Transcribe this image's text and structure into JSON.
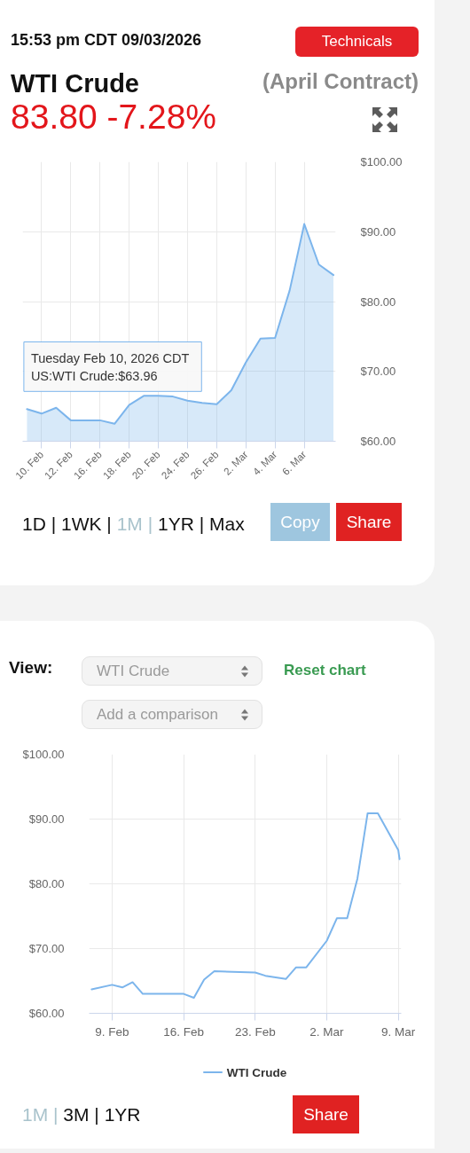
{
  "chart_data": [
    {
      "type": "area",
      "title": "WTI Crude",
      "subtitle": "(April Contract)",
      "annotations": [
        "15:53 pm CDT 09/03/2026",
        "83.80 -7.28%",
        "Technicals",
        "1D | 1WK | 1M | 1YR | Max",
        "Copy",
        "Share",
        {
          "text": "Tuesday Feb 10, 2026 CDT\nUS:WTI Crude:$63.96",
          "x": "10. Feb",
          "y": 63.96
        }
      ],
      "categories": [
        null,
        "10. Feb",
        null,
        "12. Feb",
        null,
        "16. Feb",
        null,
        "18. Feb",
        null,
        "20. Feb",
        null,
        "24. Feb",
        null,
        "26. Feb",
        null,
        "2. Mar",
        null,
        "4. Mar",
        null,
        "6. Mar",
        null,
        null
      ],
      "values": [
        64.6,
        63.96,
        64.8,
        63.0,
        63.0,
        63.0,
        62.5,
        65.2,
        66.5,
        66.5,
        66.4,
        65.8,
        65.5,
        65.3,
        67.3,
        71.3,
        74.7,
        74.8,
        81.6,
        91.1,
        85.3,
        83.8
      ],
      "color": "#7cb5ec",
      "ylim": [
        60,
        100
      ],
      "yticks": [
        {
          "value": 60,
          "label": "$60.00"
        },
        {
          "value": 70,
          "label": "$70.00"
        },
        {
          "value": 80,
          "label": "$80.00"
        },
        {
          "value": 90,
          "label": "$90.00"
        },
        {
          "value": 100,
          "label": "$100.00"
        }
      ],
      "grid": true
    },
    {
      "type": "line",
      "annotations": [
        "View:",
        "WTI Crude",
        "Add a comparison",
        "Reset chart",
        "1M | 3M | 1YR",
        "Share"
      ],
      "x": [
        "2026-02-07",
        "2026-02-09",
        "2026-02-10",
        "2026-02-11",
        "2026-02-12",
        "2026-02-16",
        "2026-02-17",
        "2026-02-18",
        "2026-02-19",
        "2026-02-23",
        "2026-02-24",
        "2026-02-26",
        "2026-02-27",
        "2026-02-28",
        "2026-03-02",
        "2026-03-03",
        "2026-03-04",
        "2026-03-05",
        "2026-03-06",
        "2026-03-07",
        "2026-03-09",
        "2026-03-09T03:00"
      ],
      "series": [
        {
          "name": "WTI Crude",
          "color": "#7cb5ec",
          "values": [
            63.7,
            64.4,
            64.0,
            64.8,
            63.0,
            63.0,
            62.4,
            65.2,
            66.5,
            66.3,
            65.8,
            65.3,
            67.1,
            67.1,
            71.2,
            74.7,
            74.7,
            80.8,
            90.9,
            90.9,
            85.2,
            83.8
          ]
        }
      ],
      "xlim": [
        "2026-02-06T18:00",
        "2026-03-09T07:00"
      ],
      "xticks": [
        {
          "value": "2026-02-09",
          "label": "9. Feb"
        },
        {
          "value": "2026-02-16",
          "label": "16. Feb"
        },
        {
          "value": "2026-02-23",
          "label": "23. Feb"
        },
        {
          "value": "2026-03-02",
          "label": "2. Mar"
        },
        {
          "value": "2026-03-09",
          "label": "9. Mar"
        }
      ],
      "ylim": [
        60,
        100
      ],
      "yticks": [
        {
          "value": 60,
          "label": "$60.00"
        },
        {
          "value": 70,
          "label": "$70.00"
        },
        {
          "value": 80,
          "label": "$80.00"
        },
        {
          "value": 90,
          "label": "$90.00"
        },
        {
          "value": 100,
          "label": "$100.00"
        }
      ],
      "grid": true,
      "legend": "bottom"
    }
  ]
}
